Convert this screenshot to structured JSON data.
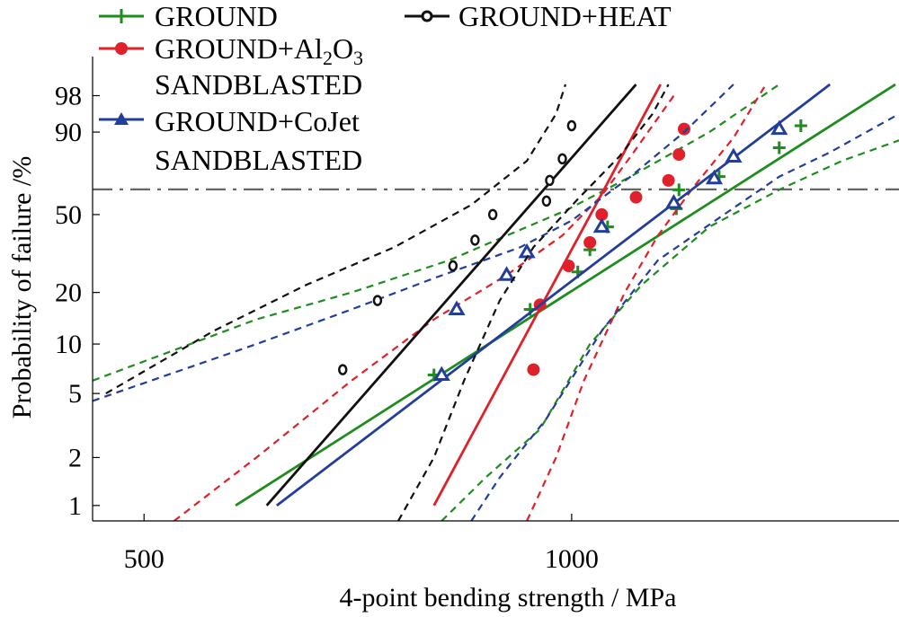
{
  "chart_data": {
    "type": "line",
    "xlabel": "4-point bending strength / MPa",
    "ylabel": "Probability of failure /%",
    "x_scale": "log",
    "y_scale": "weibull",
    "xlim": [
      460,
      1700
    ],
    "ylim": [
      0.8,
      99.9
    ],
    "x_ticks": [
      500,
      1000
    ],
    "y_ticks": [
      1,
      2,
      5,
      10,
      20,
      50,
      90,
      98
    ],
    "grid": false,
    "reference_line_y": 63.2,
    "legend_placement": "top-left",
    "legend": {
      "ground": "GROUND",
      "ground_al2o3_line1_main": "GROUND+Al",
      "ground_al2o3_sub1": "2",
      "ground_al2o3_mid": "O",
      "ground_al2o3_sub2": "3",
      "ground_al2o3_line2": "SANDBLASTED",
      "ground_cojet_line1": "GROUND+CoJet",
      "ground_cojet_line2": "SANDBLASTED",
      "ground_heat": "GROUND+HEAT"
    },
    "series": [
      {
        "name": "GROUND",
        "color": "#1e8c1e",
        "marker": "plus",
        "fit": {
          "x_at_1pct": 580,
          "x_at_99pct": 1690
        },
        "band_upper": [
          [
            460,
            6
          ],
          [
            600,
            14
          ],
          [
            700,
            20
          ],
          [
            820,
            30
          ],
          [
            900,
            40
          ],
          [
            990,
            52
          ],
          [
            1100,
            70
          ],
          [
            1250,
            90
          ],
          [
            1400,
            99
          ]
        ],
        "band_lower": [
          [
            810,
            0.8
          ],
          [
            870,
            1.5
          ],
          [
            950,
            3
          ],
          [
            1030,
            10
          ],
          [
            1120,
            22
          ],
          [
            1250,
            44
          ],
          [
            1400,
            63
          ],
          [
            1550,
            78
          ],
          [
            1700,
            87
          ]
        ],
        "points": [
          [
            800,
            6.5
          ],
          [
            935,
            16
          ],
          [
            1010,
            26
          ],
          [
            1030,
            34
          ],
          [
            1060,
            44
          ],
          [
            1185,
            53
          ],
          [
            1190,
            63
          ],
          [
            1270,
            70
          ],
          [
            1400,
            84
          ],
          [
            1450,
            92
          ]
        ]
      },
      {
        "name": "GROUND+Al2O3 SANDBLASTED",
        "color": "#e0202a",
        "marker": "star",
        "fit": {
          "x_at_1pct": 800,
          "x_at_99pct": 1155
        },
        "band_upper": [
          [
            525,
            0.8
          ],
          [
            600,
            2
          ],
          [
            700,
            6
          ],
          [
            800,
            14
          ],
          [
            900,
            25
          ],
          [
            985,
            40
          ],
          [
            1050,
            60
          ],
          [
            1100,
            80
          ],
          [
            1180,
            98
          ]
        ],
        "band_lower": [
          [
            930,
            0.8
          ],
          [
            975,
            2
          ],
          [
            1020,
            6
          ],
          [
            1090,
            20
          ],
          [
            1150,
            40
          ],
          [
            1220,
            65
          ],
          [
            1300,
            88
          ],
          [
            1370,
            99
          ]
        ],
        "points": [
          [
            940,
            7
          ],
          [
            950,
            17
          ],
          [
            995,
            28
          ],
          [
            1030,
            37
          ],
          [
            1050,
            50
          ],
          [
            1110,
            59
          ],
          [
            1170,
            68
          ],
          [
            1190,
            81
          ],
          [
            1200,
            91
          ]
        ]
      },
      {
        "name": "GROUND+CoJet SANDBLASTED",
        "color": "#223e9a",
        "marker": "triangle",
        "fit": {
          "x_at_1pct": 620,
          "x_at_99pct": 1520
        },
        "band_upper": [
          [
            460,
            4.5
          ],
          [
            600,
            10
          ],
          [
            700,
            16
          ],
          [
            800,
            24
          ],
          [
            920,
            35
          ],
          [
            1000,
            47
          ],
          [
            1100,
            70
          ],
          [
            1200,
            90
          ],
          [
            1300,
            99
          ]
        ],
        "band_lower": [
          [
            850,
            0.8
          ],
          [
            890,
            1.5
          ],
          [
            960,
            3.5
          ],
          [
            1050,
            12
          ],
          [
            1150,
            30
          ],
          [
            1280,
            50
          ],
          [
            1400,
            70
          ],
          [
            1520,
            82
          ],
          [
            1700,
            95
          ]
        ],
        "points": [
          [
            810,
            6.5
          ],
          [
            830,
            16
          ],
          [
            900,
            25
          ],
          [
            930,
            33
          ],
          [
            1050,
            44
          ],
          [
            1180,
            56
          ],
          [
            1260,
            69
          ],
          [
            1300,
            80
          ],
          [
            1400,
            91
          ]
        ]
      },
      {
        "name": "GROUND+HEAT",
        "color": "#111111",
        "marker": "circle",
        "fit": {
          "x_at_1pct": 610,
          "x_at_99pct": 1110
        },
        "band_upper": [
          [
            470,
            5
          ],
          [
            560,
            12
          ],
          [
            650,
            22
          ],
          [
            750,
            35
          ],
          [
            850,
            55
          ],
          [
            930,
            78
          ],
          [
            975,
            95
          ],
          [
            990,
            99
          ]
        ],
        "band_lower": [
          [
            755,
            0.8
          ],
          [
            800,
            2
          ],
          [
            840,
            6
          ],
          [
            890,
            18
          ],
          [
            940,
            35
          ],
          [
            1010,
            58
          ],
          [
            1080,
            80
          ],
          [
            1140,
            95
          ],
          [
            1170,
            99
          ]
        ],
        "points": [
          [
            690,
            7
          ],
          [
            730,
            18
          ],
          [
            825,
            28
          ],
          [
            855,
            38
          ],
          [
            880,
            50
          ],
          [
            960,
            57
          ],
          [
            965,
            68
          ],
          [
            985,
            79
          ],
          [
            1000,
            92
          ]
        ]
      }
    ]
  }
}
